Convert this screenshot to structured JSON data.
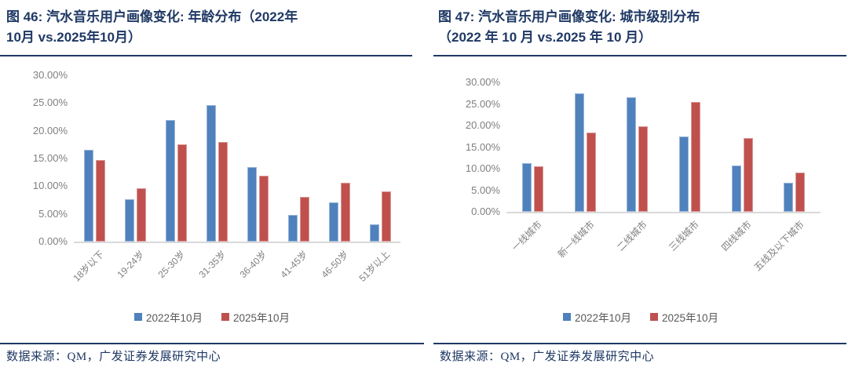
{
  "colors": {
    "series_2022_blue": "#4F81BD",
    "series_2025_red": "#C0504D",
    "title_navy": "#1F3864",
    "axis_text_gray": "#7F7F7F",
    "legend_text_gray": "#595959",
    "axis_line_gray": "#D9D9D9"
  },
  "figures": [
    {
      "title_lines": [
        "图 46: 汽水音乐用户画像变化: 年龄分布（2022年",
        "10月 vs.2025年10月）"
      ],
      "source": "数据来源：QM，广发证券发展研究中心"
    },
    {
      "title_lines": [
        "图 47: 汽水音乐用户画像变化: 城市级别分布",
        "（2022 年 10 月 vs.2025 年 10 月）"
      ],
      "source": "数据来源：QM，广发证券发展研究中心"
    }
  ],
  "chart_data": [
    {
      "type": "bar",
      "title": "图 46: 汽水音乐用户画像变化: 年龄分布（2022年10月 vs.2025年10月）",
      "categories": [
        "18岁以下",
        "19-24岁",
        "25-30岁",
        "31-35岁",
        "36-40岁",
        "41-45岁",
        "46-50岁",
        "51岁以上"
      ],
      "series": [
        {
          "name": "2022年10月",
          "color": "#4F81BD",
          "values": [
            16.5,
            7.6,
            21.9,
            24.6,
            13.4,
            4.8,
            7.1,
            3.1
          ]
        },
        {
          "name": "2025年10月",
          "color": "#C0504D",
          "values": [
            14.7,
            9.6,
            17.5,
            18.0,
            11.9,
            8.1,
            10.6,
            9.1
          ]
        }
      ],
      "xlabel": "",
      "ylabel": "",
      "ylim": [
        0,
        30
      ],
      "ytick_step": 5,
      "ytick_labels": [
        "0.00%",
        "5.00%",
        "10.00%",
        "15.00%",
        "20.00%",
        "25.00%",
        "30.00%"
      ],
      "grid": false,
      "legend_position": "bottom",
      "value_unit": "%"
    },
    {
      "type": "bar",
      "title": "图 47: 汽水音乐用户画像变化: 城市级别分布（2022 年 10 月 vs.2025 年 10 月）",
      "categories": [
        "一线城市",
        "新一线城市",
        "二线城市",
        "三线城市",
        "四线城市",
        "五线及以下城市"
      ],
      "series": [
        {
          "name": "2022年10月",
          "color": "#4F81BD",
          "values": [
            11.3,
            27.5,
            26.5,
            17.5,
            10.8,
            6.7
          ]
        },
        {
          "name": "2025年10月",
          "color": "#C0504D",
          "values": [
            10.6,
            18.4,
            19.9,
            25.5,
            17.0,
            9.1
          ]
        }
      ],
      "xlabel": "",
      "ylabel": "",
      "ylim": [
        0,
        30
      ],
      "ytick_step": 5,
      "ytick_labels": [
        "0.00%",
        "5.00%",
        "10.00%",
        "15.00%",
        "20.00%",
        "25.00%",
        "30.00%"
      ],
      "grid": false,
      "legend_position": "bottom",
      "value_unit": "%"
    }
  ]
}
